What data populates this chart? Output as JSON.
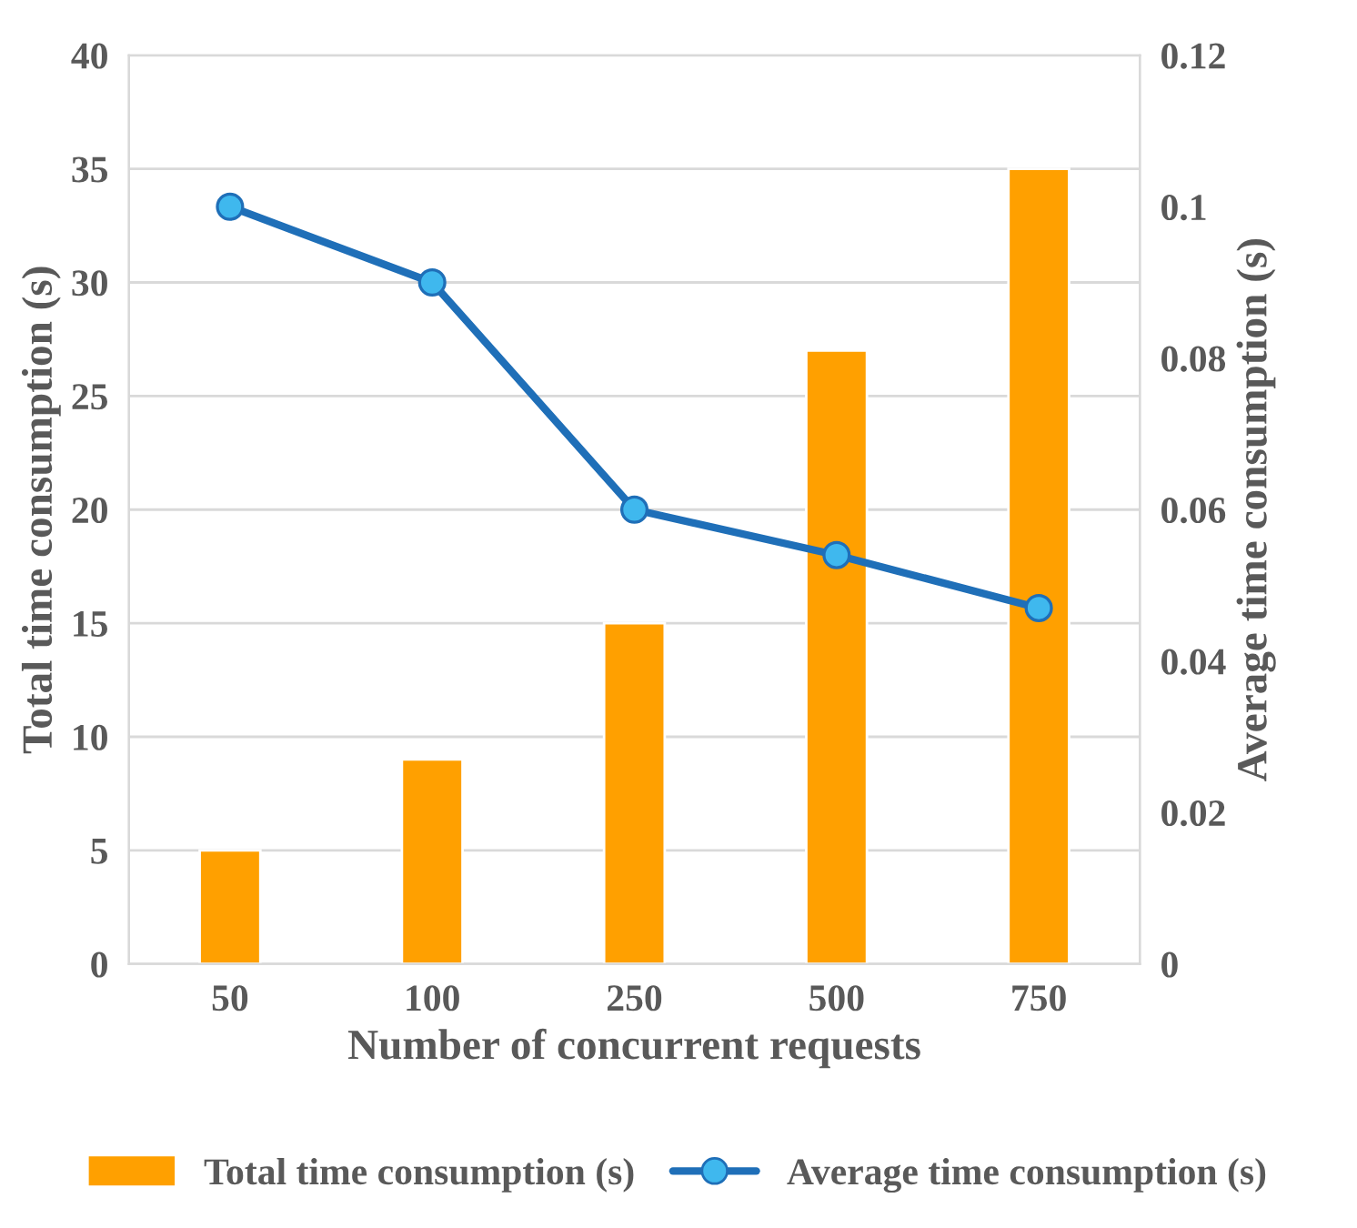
{
  "chart_data": {
    "type": "bar",
    "xlabel": "Number of concurrent requests",
    "ylabel": "Total time consumption (s)",
    "y2label": "Average time consumption (s)",
    "categories": [
      "50",
      "100",
      "250",
      "500",
      "750"
    ],
    "series": [
      {
        "name": "Total time consumption (s)",
        "color": "#ffa000",
        "values": [
          5,
          9,
          15,
          27,
          35
        ]
      },
      {
        "name": "Average time consumption (s)",
        "type": "line",
        "axis": "y2",
        "color": "#1f6fb8",
        "marker": "circle",
        "line_style": "solid",
        "values": [
          0.1,
          0.09,
          0.06,
          0.054,
          0.047
        ]
      }
    ],
    "ylim": [
      0,
      40
    ],
    "yticks": [
      0,
      5,
      10,
      15,
      20,
      25,
      30,
      35,
      40
    ],
    "y2lim": [
      0,
      0.12
    ],
    "y2ticks": [
      {
        "value": 0,
        "label": "0"
      },
      0.02,
      0.04,
      0.06,
      0.08,
      0.1,
      0.12
    ],
    "grid": "y",
    "legend": "bottom"
  }
}
